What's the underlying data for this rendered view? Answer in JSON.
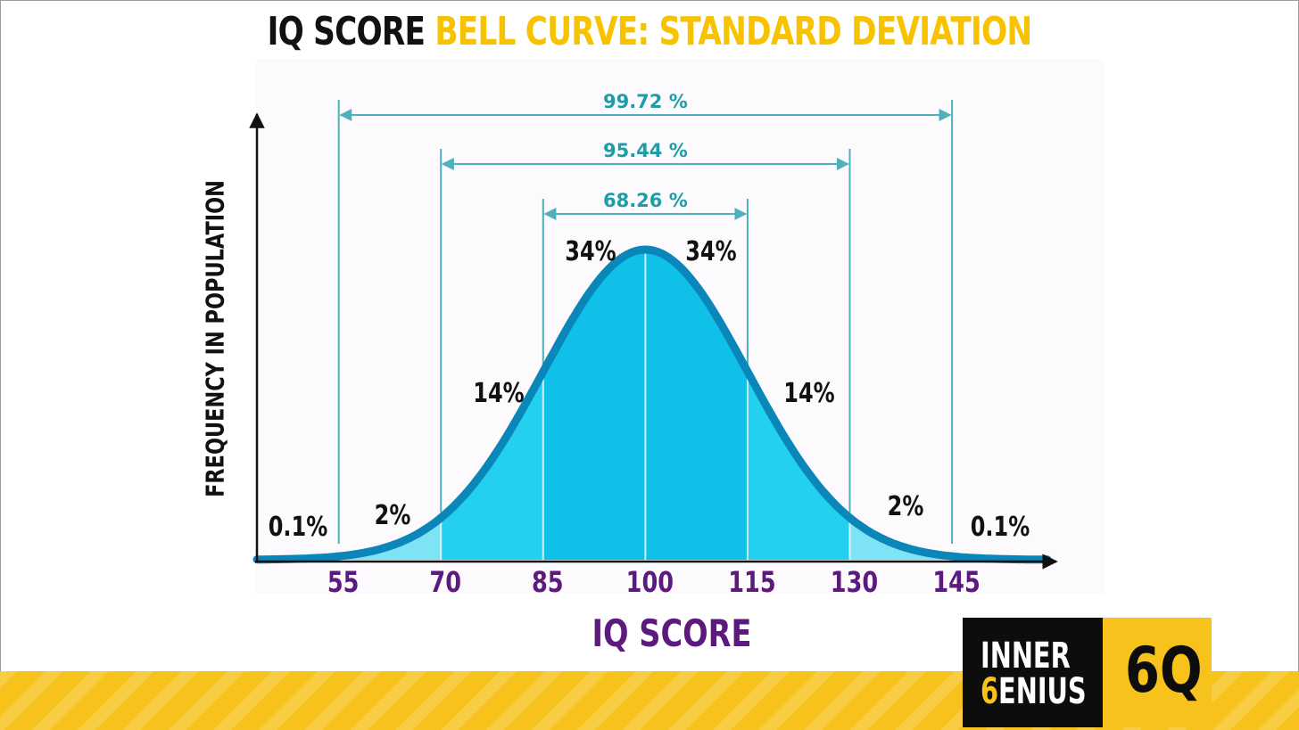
{
  "title": {
    "part1": "IQ SCORE",
    "part2": "BELL CURVE: STANDARD DEVIATION"
  },
  "colors": {
    "title_dark": "#111111",
    "title_accent": "#f7c300",
    "curve_stroke": "#0a86b8",
    "fill_inner": "#0fc0e8",
    "fill_mid": "#23d0f0",
    "fill_outer": "#7ee3f5",
    "bracket": "#4fb0bc",
    "axis_tick": "#5d1a7e",
    "brand_gold": "#f6c21b"
  },
  "chart_data": {
    "type": "area",
    "distribution": "normal",
    "mean": 100,
    "sd": 15,
    "xlabel": "IQ SCORE",
    "ylabel": "FREQUENCY IN POPULATION",
    "x_ticks": [
      "55",
      "70",
      "85",
      "100",
      "115",
      "130",
      "145"
    ],
    "xlim": [
      43,
      159
    ],
    "bands": [
      {
        "from": 43,
        "to": 55,
        "label": "0.1%"
      },
      {
        "from": 55,
        "to": 70,
        "label": "2%"
      },
      {
        "from": 70,
        "to": 85,
        "label": "14%"
      },
      {
        "from": 85,
        "to": 100,
        "label": "34%"
      },
      {
        "from": 100,
        "to": 115,
        "label": "34%"
      },
      {
        "from": 115,
        "to": 130,
        "label": "14%"
      },
      {
        "from": 130,
        "to": 145,
        "label": "2%"
      },
      {
        "from": 145,
        "to": 159,
        "label": "0.1%"
      }
    ],
    "ranges": [
      {
        "from": 55,
        "to": 145,
        "label": "99.72 %"
      },
      {
        "from": 70,
        "to": 130,
        "label": "95.44 %"
      },
      {
        "from": 85,
        "to": 115,
        "label": "68.26 %"
      }
    ]
  },
  "logo": {
    "line1": "INNER",
    "line2_initial": "6",
    "line2_rest": "ENIUS",
    "mark": "6Q"
  }
}
